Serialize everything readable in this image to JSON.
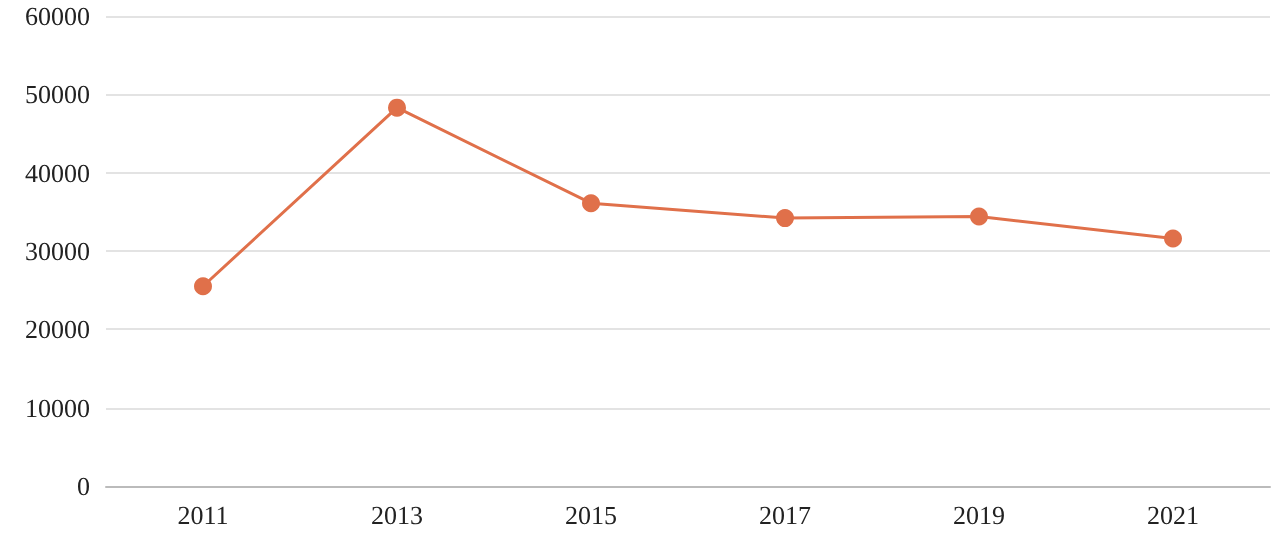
{
  "chart_data": {
    "type": "line",
    "categories": [
      "2011",
      "2013",
      "2015",
      "2017",
      "2019",
      "2021"
    ],
    "series": [
      {
        "color": "#e0704a",
        "values": [
          25500,
          48300,
          36100,
          34200,
          34400,
          31600
        ]
      }
    ],
    "ylim": [
      0,
      60000
    ],
    "yticks": [
      0,
      10000,
      20000,
      30000,
      40000,
      50000,
      60000
    ],
    "grid": "y",
    "marker": "circle",
    "line_style": "solid"
  }
}
